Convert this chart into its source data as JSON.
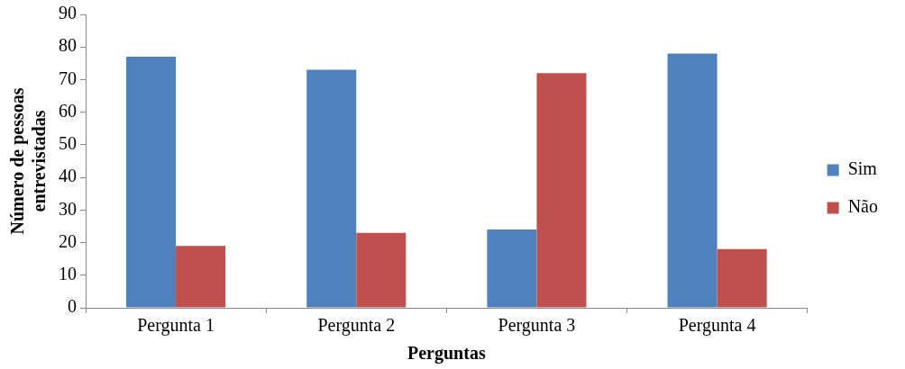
{
  "chart_data": {
    "type": "bar",
    "xlabel": "Perguntas",
    "ylabel": "Número de pessoas entrevistadas",
    "categories": [
      "Pergunta 1",
      "Pergunta 2",
      "Pergunta 3",
      "Pergunta 4"
    ],
    "series": [
      {
        "name": "Sim",
        "color": "#4f81bd",
        "values": [
          77,
          73,
          24,
          78
        ]
      },
      {
        "name": "Não",
        "color": "#c0504d",
        "values": [
          19,
          23,
          72,
          18
        ]
      }
    ],
    "ylim": [
      0,
      90
    ],
    "yticks": [
      0,
      10,
      20,
      30,
      40,
      50,
      60,
      70,
      80,
      90
    ],
    "grid": false,
    "legend": "right"
  }
}
